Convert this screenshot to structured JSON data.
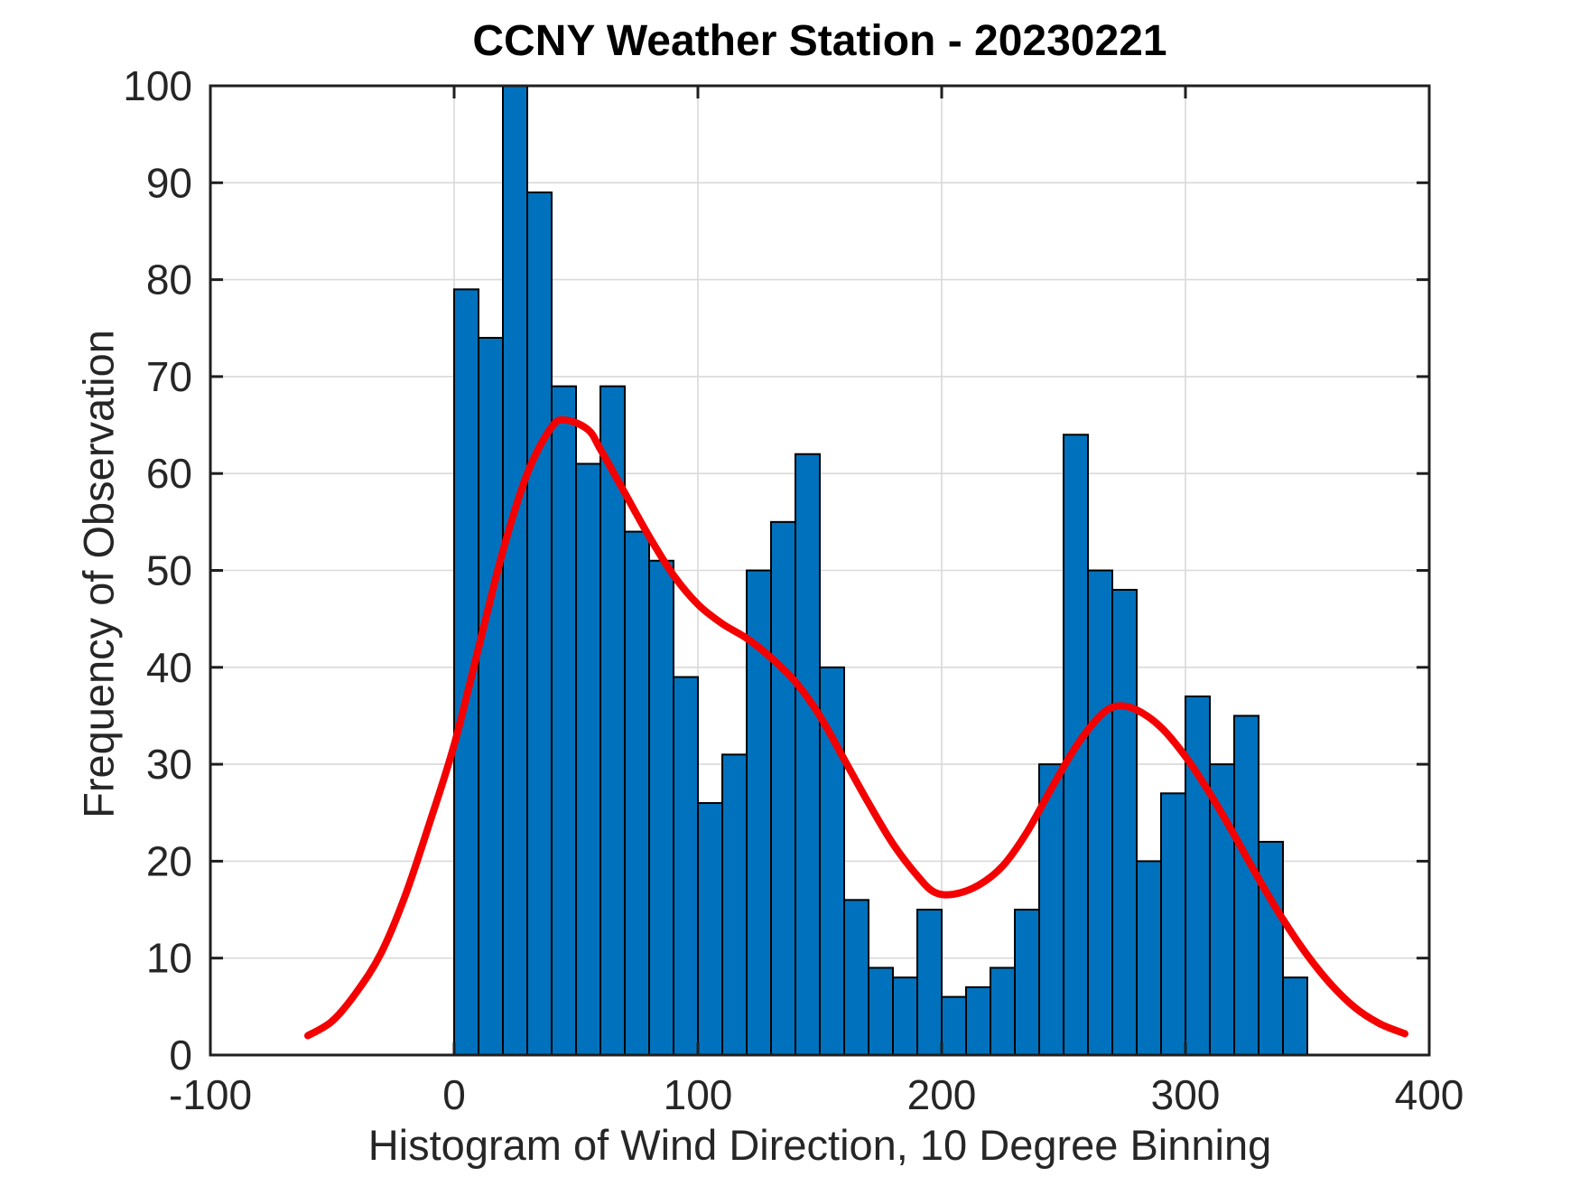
{
  "chart_data": {
    "type": "bar",
    "subtype": "histogram-with-density-curve",
    "title": "CCNY Weather Station - 20230221",
    "xlabel": "Histogram of Wind Direction, 10 Degree Binning",
    "ylabel": "Frequency of Observation",
    "xlim": [
      -100,
      400
    ],
    "ylim": [
      0,
      100
    ],
    "x_ticks": [
      -100,
      0,
      100,
      200,
      300,
      400
    ],
    "y_ticks": [
      0,
      10,
      20,
      30,
      40,
      50,
      60,
      70,
      80,
      90,
      100
    ],
    "grid": true,
    "legend": "none",
    "bin_width": 10,
    "bars": {
      "bin_starts": [
        0,
        10,
        20,
        30,
        40,
        50,
        60,
        70,
        80,
        90,
        100,
        110,
        120,
        130,
        140,
        150,
        160,
        170,
        180,
        190,
        200,
        210,
        220,
        230,
        240,
        250,
        260,
        270,
        280,
        290,
        300,
        310,
        320,
        330,
        340
      ],
      "values": [
        79,
        74,
        100,
        89,
        69,
        61,
        69,
        54,
        51,
        39,
        26,
        31,
        50,
        55,
        62,
        40,
        16,
        9,
        8,
        15,
        6,
        7,
        9,
        15,
        30,
        64,
        50,
        48,
        20,
        27,
        37,
        30,
        35,
        22,
        8
      ],
      "clipped_note": "bin 20-30 reaches the top of the axis (clipped at y = 100)",
      "clipped_bin_start": 20
    },
    "overlay_curve": {
      "type": "line",
      "name": "bimodal-density-fit",
      "points": [
        [
          -60,
          2
        ],
        [
          -50,
          3.5
        ],
        [
          -40,
          6.5
        ],
        [
          -30,
          10.5
        ],
        [
          -20,
          16.5
        ],
        [
          -10,
          24
        ],
        [
          0,
          32
        ],
        [
          10,
          42
        ],
        [
          20,
          52
        ],
        [
          30,
          60
        ],
        [
          40,
          64.8
        ],
        [
          46,
          65.5
        ],
        [
          55,
          64.5
        ],
        [
          60,
          62.5
        ],
        [
          70,
          58
        ],
        [
          80,
          53.5
        ],
        [
          90,
          49.5
        ],
        [
          100,
          46.5
        ],
        [
          110,
          44.5
        ],
        [
          120,
          43
        ],
        [
          130,
          41
        ],
        [
          140,
          38.5
        ],
        [
          150,
          35
        ],
        [
          160,
          30.5
        ],
        [
          170,
          26
        ],
        [
          180,
          21.8
        ],
        [
          190,
          18.5
        ],
        [
          197,
          16.8
        ],
        [
          205,
          16.6
        ],
        [
          215,
          17.5
        ],
        [
          225,
          19.5
        ],
        [
          235,
          23
        ],
        [
          245,
          27.5
        ],
        [
          255,
          31.8
        ],
        [
          265,
          35
        ],
        [
          272,
          36
        ],
        [
          280,
          35.6
        ],
        [
          290,
          33.8
        ],
        [
          300,
          30.8
        ],
        [
          310,
          27
        ],
        [
          320,
          22.7
        ],
        [
          330,
          18.2
        ],
        [
          340,
          14
        ],
        [
          350,
          10.3
        ],
        [
          360,
          7.2
        ],
        [
          370,
          4.8
        ],
        [
          380,
          3.2
        ],
        [
          390,
          2.2
        ]
      ]
    },
    "colors": {
      "bar_fill": "#0072bd",
      "bar_edge": "#000000",
      "curve": "#f40000",
      "grid": "#d9d9d9",
      "axis": "#1f1f1f",
      "tick_label": "#262626",
      "background": "#ffffff"
    }
  }
}
